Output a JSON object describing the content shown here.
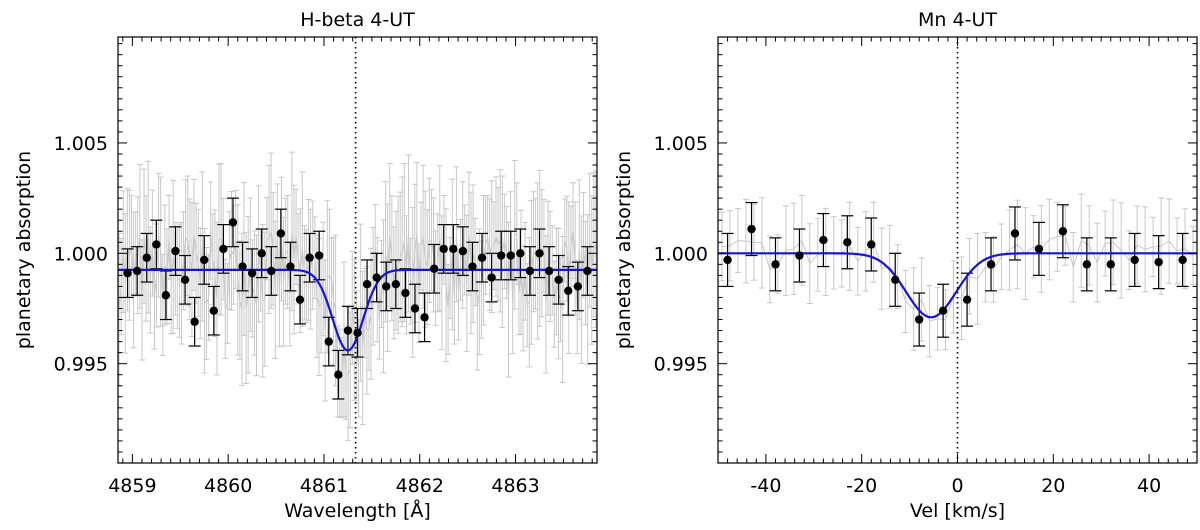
{
  "chart_data": [
    {
      "type": "scatter",
      "title": "H-beta 4-UT",
      "xlabel": "Wavelength [Å]",
      "ylabel": "planetary absorption",
      "xlim": [
        4858.85,
        4863.85
      ],
      "ylim": [
        0.9905,
        1.0098
      ],
      "xticks": [
        4859,
        4860,
        4861,
        4862,
        4863
      ],
      "xtick_labels": [
        "4859",
        "4860",
        "4861",
        "4862",
        "4863"
      ],
      "yticks": [
        0.995,
        1.0,
        1.005
      ],
      "ytick_labels": [
        "0.995",
        "1.000",
        "1.005"
      ],
      "marker_line": 4861.33,
      "series": [
        {
          "name": "binned data",
          "x": [
            4858.95,
            4859.05,
            4859.15,
            4859.25,
            4859.35,
            4859.45,
            4859.55,
            4859.65,
            4859.75,
            4859.85,
            4859.95,
            4860.05,
            4860.15,
            4860.25,
            4860.35,
            4860.45,
            4860.55,
            4860.65,
            4860.75,
            4860.85,
            4860.95,
            4861.05,
            4861.15,
            4861.25,
            4861.35,
            4861.45,
            4861.55,
            4861.65,
            4861.75,
            4861.85,
            4861.95,
            4862.05,
            4862.15,
            4862.25,
            4862.35,
            4862.45,
            4862.55,
            4862.65,
            4862.75,
            4862.85,
            4862.95,
            4863.05,
            4863.15,
            4863.25,
            4863.35,
            4863.45,
            4863.55,
            4863.65,
            4863.75
          ],
          "y": [
            0.9991,
            0.9992,
            0.9998,
            1.0004,
            0.9981,
            1.0001,
            0.9988,
            0.9969,
            0.9997,
            0.9974,
            1.0002,
            1.0014,
            0.9994,
            0.9991,
            1.0,
            0.9992,
            1.0009,
            0.9994,
            0.9979,
            0.9998,
            0.9999,
            0.996,
            0.9945,
            0.9965,
            0.9964,
            0.9986,
            0.9989,
            0.9985,
            0.9986,
            0.9982,
            0.9975,
            0.9971,
            0.9993,
            1.0002,
            1.0002,
            1.0001,
            0.9994,
            0.9998,
            0.9989,
            0.9999,
            0.9999,
            1.0,
            0.9992,
            1.0,
            0.9992,
            0.9988,
            0.9983,
            0.9985,
            0.9992
          ],
          "yerr": [
            0.0011,
            0.0011,
            0.0011,
            0.0011,
            0.0011,
            0.0011,
            0.0011,
            0.0011,
            0.0011,
            0.0011,
            0.0011,
            0.0011,
            0.0011,
            0.0011,
            0.0011,
            0.0011,
            0.0011,
            0.0011,
            0.0011,
            0.0011,
            0.0011,
            0.0011,
            0.0011,
            0.0011,
            0.0011,
            0.0011,
            0.0011,
            0.0011,
            0.0011,
            0.0011,
            0.0011,
            0.0011,
            0.0011,
            0.0011,
            0.0011,
            0.0011,
            0.0011,
            0.0011,
            0.0011,
            0.0011,
            0.0011,
            0.0011,
            0.0011,
            0.0011,
            0.0011,
            0.0011,
            0.0011,
            0.0011,
            0.0011
          ]
        },
        {
          "name": "gaussian fit",
          "baseline": 0.99925,
          "amplitude": -0.00365,
          "center": 4861.25,
          "sigma": 0.16
        }
      ]
    },
    {
      "type": "scatter",
      "title": "Mn 4-UT",
      "xlabel": "Vel [km/s]",
      "ylabel": "planetary absorption",
      "xlim": [
        -50,
        50
      ],
      "ylim": [
        0.9905,
        1.0098
      ],
      "xticks": [
        -40,
        -20,
        0,
        20,
        40
      ],
      "xtick_labels": [
        "-40",
        "-20",
        "0",
        "20",
        "40"
      ],
      "yticks": [
        0.995,
        1.0,
        1.005
      ],
      "ytick_labels": [
        "0.995",
        "1.000",
        "1.005"
      ],
      "marker_line": 0,
      "series": [
        {
          "name": "binned data",
          "x": [
            -48,
            -43,
            -38,
            -33,
            -28,
            -23,
            -18,
            -13,
            -8,
            -3,
            2,
            7,
            12,
            17,
            22,
            27,
            32,
            37,
            42,
            47
          ],
          "y": [
            0.9997,
            1.0011,
            0.9995,
            0.9999,
            1.0006,
            1.0005,
            1.0004,
            0.9988,
            0.997,
            0.9974,
            0.9979,
            0.9995,
            1.0009,
            1.0002,
            1.001,
            0.9995,
            0.9995,
            0.9997,
            0.9996,
            0.9997
          ],
          "yerr": [
            0.0012,
            0.0012,
            0.0012,
            0.0012,
            0.0012,
            0.0012,
            0.0012,
            0.0012,
            0.0012,
            0.0012,
            0.0012,
            0.0012,
            0.0012,
            0.0012,
            0.0012,
            0.0012,
            0.0012,
            0.0012,
            0.0012,
            0.0012
          ]
        },
        {
          "name": "gaussian fit",
          "baseline": 1.0,
          "amplitude": -0.0029,
          "center": -5.5,
          "sigma": 5.2
        }
      ]
    }
  ],
  "colors": {
    "fit": "#1414d2",
    "errorbar": "#000000",
    "faint": "#c8c8c8",
    "marker": "#000000"
  }
}
